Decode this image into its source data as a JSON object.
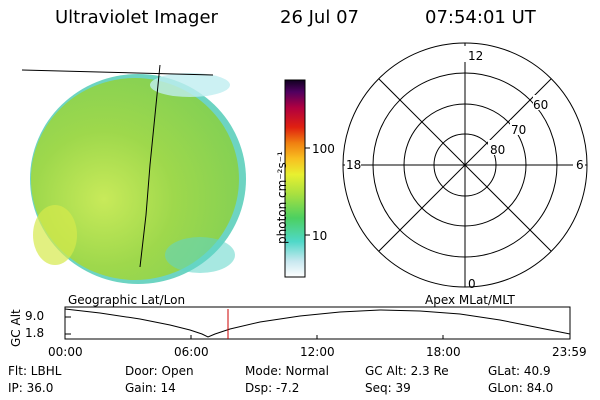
{
  "header": {
    "title": "Ultraviolet Imager",
    "date": "26 Jul 07",
    "time": "07:54:01 UT"
  },
  "colorbar": {
    "label": "photon cm⁻²s⁻¹",
    "tick_100": "100",
    "tick_10": "10"
  },
  "polar": {
    "mlt_12": "12",
    "mlt_18": "18",
    "mlt_6": "6",
    "mlt_0": "0",
    "lat_60": "60",
    "lat_70": "70",
    "lat_80": "80"
  },
  "labels": {
    "geo": "Geographic Lat/Lon",
    "apex": "Apex MLat/MLT"
  },
  "altplot": {
    "axis_label": "GC Alt",
    "ymax": "9.0",
    "ymin": "1.8",
    "ticks": [
      "00:00",
      "06:00",
      "12:00",
      "18:00",
      "23:59"
    ]
  },
  "info": {
    "flt": "Flt: LBHL",
    "ip": "IP: 36.0",
    "door": "Door: Open",
    "gain": "Gain: 14",
    "mode": "Mode: Normal",
    "dsp": "Dsp:    -7.2",
    "gcalt": "GC Alt: 2.3 Re",
    "seq": "Seq: 39",
    "glat": "GLat:   40.9",
    "glon": "GLon:   84.0"
  },
  "colors": {
    "disk_main": "#9bd84a",
    "disk_light": "#b7e86a",
    "disk_dark": "#7cc94a",
    "limb": "#5fd6c8",
    "marker": "#cc0000"
  }
}
